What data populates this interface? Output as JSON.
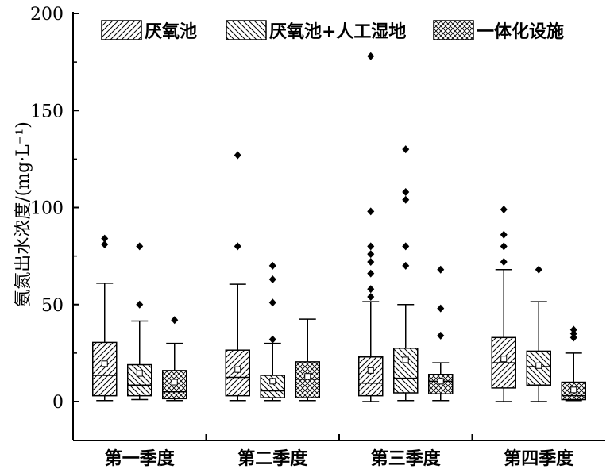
{
  "chart_data": {
    "type": "box",
    "ylabel": "氨氮出水浓度/(mg·L⁻¹)",
    "ylim": [
      -20,
      200
    ],
    "yticks": [
      0,
      50,
      100,
      150,
      200
    ],
    "categories": [
      "第一季度",
      "第二季度",
      "第三季度",
      "第四季度"
    ],
    "legend_position": "top",
    "series": [
      {
        "name": "厌氧池",
        "pattern": "diagonal-forward",
        "boxes": [
          {
            "min": 0.5,
            "q1": 3,
            "median": 13.5,
            "q3": 30.5,
            "max": 61,
            "mean": 19.5,
            "outliers": [
              81,
              84
            ]
          },
          {
            "min": 0.5,
            "q1": 3,
            "median": 12.5,
            "q3": 26.5,
            "max": 60.5,
            "mean": 16.5,
            "outliers": [
              80,
              127
            ]
          },
          {
            "min": 0,
            "q1": 3,
            "median": 9.5,
            "q3": 23,
            "max": 51.5,
            "mean": 16,
            "outliers": [
              54,
              58,
              66,
              72,
              76,
              80,
              98,
              178
            ]
          },
          {
            "min": 0,
            "q1": 7,
            "median": 20,
            "q3": 33,
            "max": 68,
            "mean": 22,
            "outliers": [
              72,
              80,
              86,
              99
            ]
          }
        ]
      },
      {
        "name": "厌氧池+人工湿地",
        "pattern": "diagonal-back",
        "boxes": [
          {
            "min": 1,
            "q1": 3,
            "median": 8.5,
            "q3": 19,
            "max": 41.5,
            "mean": 14.5,
            "outliers": [
              50,
              80
            ]
          },
          {
            "min": 0.5,
            "q1": 2,
            "median": 5.5,
            "q3": 13.5,
            "max": 30,
            "mean": 10.5,
            "outliers": [
              32,
              51,
              63,
              70
            ]
          },
          {
            "min": 0.5,
            "q1": 4.5,
            "median": 12,
            "q3": 27.5,
            "max": 50,
            "mean": 21.5,
            "outliers": [
              70,
              80,
              104,
              108,
              130
            ]
          },
          {
            "min": 0,
            "q1": 8.5,
            "median": 18,
            "q3": 26,
            "max": 51.5,
            "mean": 18.5,
            "outliers": [
              68
            ]
          }
        ]
      },
      {
        "name": "一体化设施",
        "pattern": "crosshatch",
        "boxes": [
          {
            "min": 0.5,
            "q1": 1.5,
            "median": 5,
            "q3": 16,
            "max": 30,
            "mean": 10,
            "outliers": [
              42
            ]
          },
          {
            "min": 0.5,
            "q1": 2,
            "median": 11.5,
            "q3": 20.5,
            "max": 42.5,
            "mean": 13,
            "outliers": []
          },
          {
            "min": 0.5,
            "q1": 4,
            "median": 10.5,
            "q3": 14,
            "max": 20,
            "mean": 10.5,
            "outliers": [
              34,
              48,
              68
            ]
          },
          {
            "min": 0.5,
            "q1": 1,
            "median": 3,
            "q3": 10,
            "max": 25,
            "mean": 6,
            "outliers": [
              33,
              35,
              37
            ]
          }
        ]
      }
    ]
  }
}
